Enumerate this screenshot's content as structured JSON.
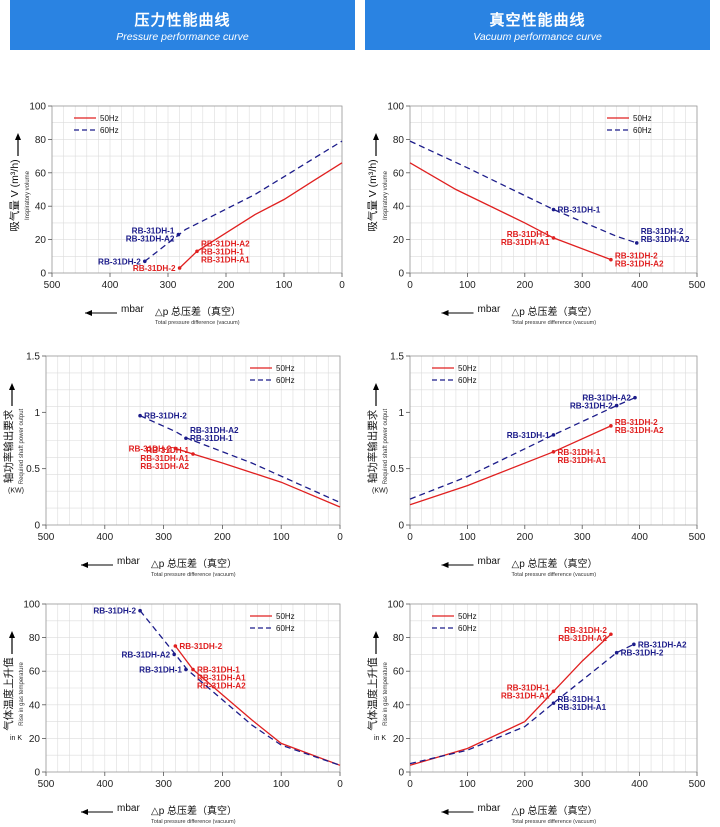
{
  "headers": {
    "left_cn": "压力性能曲线",
    "left_en": "Pressure performance curve",
    "right_cn": "真空性能曲线",
    "right_en": "Vacuum performance curve"
  },
  "colors": {
    "hz50": "#e02020",
    "hz60": "#1c1c8a",
    "header": "#2a83e2"
  },
  "chart_data": [
    {
      "id": "flow-pressure",
      "type": "line",
      "ylabel_cn": "吸气量 V (m³/h)",
      "ylabel_en": "Inspiratory volume",
      "ylabel_unit": "",
      "xunit": "mbar",
      "xlabel_cn": "△p 总压差（真空）",
      "xlabel_en": "Total pressure difference (vacuum)",
      "xlim": [
        500,
        0
      ],
      "xticks": [
        500,
        400,
        300,
        200,
        100,
        0
      ],
      "ylim": [
        0,
        100
      ],
      "yticks": [
        0,
        20,
        40,
        60,
        80,
        100
      ],
      "legend": "top-left",
      "series": [
        {
          "name": "50Hz",
          "dash": false,
          "points": [
            [
              280,
              3
            ],
            [
              250,
              13
            ],
            [
              200,
              24
            ],
            [
              150,
              35
            ],
            [
              100,
              44
            ],
            [
              50,
              55
            ],
            [
              0,
              66
            ]
          ],
          "markers": [
            {
              "x": 280,
              "y": 3,
              "labels": [
                "RB-31DH-2"
              ],
              "side": "left",
              "dy": 0
            },
            {
              "x": 250,
              "y": 13,
              "labels": [
                "RB-31DH-A2",
                "RB-31DH-1",
                "RB-31DH-A1"
              ],
              "side": "right",
              "dy": 0
            }
          ]
        },
        {
          "name": "60Hz",
          "dash": true,
          "points": [
            [
              340,
              7
            ],
            [
              270,
              26
            ],
            [
              150,
              47
            ],
            [
              0,
              79
            ]
          ],
          "markers": [
            {
              "x": 340,
              "y": 7,
              "labels": [
                "RB-31DH-2"
              ],
              "side": "left",
              "dy": 0
            },
            {
              "x": 282,
              "y": 23,
              "labels": [
                "RB-31DH-1",
                "RB-31DH-A2"
              ],
              "side": "left",
              "dy": 0
            }
          ]
        }
      ]
    },
    {
      "id": "flow-vacuum",
      "type": "line",
      "ylabel_cn": "吸气量 V (m³/h)",
      "ylabel_en": "Inspiratory volume",
      "ylabel_unit": "",
      "xunit": "mbar",
      "xlabel_cn": "△p 总压差（真空）",
      "xlabel_en": "Total pressure difference (vacuum)",
      "xlim": [
        0,
        500
      ],
      "xticks": [
        0,
        100,
        200,
        300,
        400,
        500
      ],
      "ylim": [
        0,
        100
      ],
      "yticks": [
        0,
        20,
        40,
        60,
        80,
        100
      ],
      "legend": "top-right",
      "series": [
        {
          "name": "50Hz",
          "dash": false,
          "points": [
            [
              0,
              66
            ],
            [
              80,
              50
            ],
            [
              200,
              30
            ],
            [
              250,
              21
            ],
            [
              350,
              8
            ]
          ],
          "markers": [
            {
              "x": 250,
              "y": 21,
              "labels": [
                "RB-31DH-1",
                "RB-31DH-A1"
              ],
              "side": "left",
              "dy": 0
            },
            {
              "x": 350,
              "y": 8,
              "labels": [
                "RB-31DH-2",
                "RB-31DH-A2"
              ],
              "side": "right",
              "dy": 0
            }
          ]
        },
        {
          "name": "60Hz",
          "dash": true,
          "points": [
            [
              0,
              79
            ],
            [
              100,
              63
            ],
            [
              250,
              38
            ],
            [
              360,
              22
            ],
            [
              395,
              18
            ]
          ],
          "markers": [
            {
              "x": 250,
              "y": 38,
              "labels": [
                "RB-31DH-1"
              ],
              "side": "right",
              "dy": 0
            },
            {
              "x": 395,
              "y": 18,
              "labels": [
                "RB-31DH-2",
                "RB-31DH-A2"
              ],
              "side": "right",
              "dy": -1
            }
          ]
        }
      ]
    },
    {
      "id": "power-pressure",
      "type": "line",
      "ylabel_cn": "轴功率输出要求",
      "ylabel_en": "Required shaft power output",
      "ylabel_unit": "(KW)",
      "xunit": "mbar",
      "xlabel_cn": "△p 总压差（真空）",
      "xlabel_en": "Total pressure difference (vacuum)",
      "xlim": [
        500,
        0
      ],
      "xticks": [
        500,
        400,
        300,
        200,
        100,
        0
      ],
      "ylim": [
        0,
        1.5
      ],
      "yticks": [
        0,
        0.5,
        1,
        1.5
      ],
      "legend": "top-right",
      "series": [
        {
          "name": "50Hz",
          "dash": false,
          "points": [
            [
              280,
              0.68
            ],
            [
              250,
              0.63
            ],
            [
              200,
              0.55
            ],
            [
              100,
              0.38
            ],
            [
              0,
              0.16
            ]
          ],
          "markers": [
            {
              "x": 280,
              "y": 0.68,
              "labels": [
                "RB-31DH-2"
              ],
              "side": "left",
              "dy": 0
            },
            {
              "x": 250,
              "y": 0.63,
              "labels": [
                "RB-31DH-1",
                "RB-31DH-A1",
                "RB-31DH-A2"
              ],
              "side": "left",
              "dy": 0.5
            }
          ]
        },
        {
          "name": "60Hz",
          "dash": true,
          "points": [
            [
              340,
              0.97
            ],
            [
              280,
              0.83
            ],
            [
              260,
              0.77
            ],
            [
              150,
              0.55
            ],
            [
              0,
              0.2
            ]
          ],
          "markers": [
            {
              "x": 340,
              "y": 0.97,
              "labels": [
                "RB-31DH-2"
              ],
              "side": "right",
              "dy": 0
            },
            {
              "x": 262,
              "y": 0.77,
              "labels": [
                "RB-31DH-A2",
                "RB-31DH-1"
              ],
              "side": "right",
              "dy": -0.5
            }
          ]
        }
      ]
    },
    {
      "id": "power-vacuum",
      "type": "line",
      "ylabel_cn": "轴功率输出要求",
      "ylabel_en": "Required shaft power output",
      "ylabel_unit": "(KW)",
      "xunit": "mbar",
      "xlabel_cn": "△p 总压差（真空）",
      "xlabel_en": "Total pressure difference (vacuum)",
      "xlim": [
        0,
        500
      ],
      "xticks": [
        0,
        100,
        200,
        300,
        400,
        500
      ],
      "ylim": [
        0,
        1.5
      ],
      "yticks": [
        0,
        0.5,
        1,
        1.5
      ],
      "legend": "top-left",
      "series": [
        {
          "name": "50Hz",
          "dash": false,
          "points": [
            [
              0,
              0.18
            ],
            [
              100,
              0.35
            ],
            [
              250,
              0.65
            ],
            [
              350,
              0.88
            ]
          ],
          "markers": [
            {
              "x": 250,
              "y": 0.65,
              "labels": [
                "RB-31DH-1",
                "RB-31DH-A1"
              ],
              "side": "right",
              "dy": 0.5
            },
            {
              "x": 350,
              "y": 0.88,
              "labels": [
                "RB-31DH-2",
                "RB-31DH-A2"
              ],
              "side": "right",
              "dy": 0
            }
          ]
        },
        {
          "name": "60Hz",
          "dash": true,
          "points": [
            [
              0,
              0.23
            ],
            [
              100,
              0.43
            ],
            [
              250,
              0.8
            ],
            [
              360,
              1.06
            ],
            [
              392,
              1.13
            ]
          ],
          "markers": [
            {
              "x": 250,
              "y": 0.8,
              "labels": [
                "RB-31DH-1"
              ],
              "side": "left",
              "dy": 0
            },
            {
              "x": 360,
              "y": 1.06,
              "labels": [
                "RB-31DH-2"
              ],
              "side": "left",
              "dy": 0
            },
            {
              "x": 392,
              "y": 1.13,
              "labels": [
                "RB-31DH-A2"
              ],
              "side": "left",
              "dy": 0
            }
          ]
        }
      ]
    },
    {
      "id": "temp-pressure",
      "type": "line",
      "ylabel_cn": "气体温度上升值",
      "ylabel_en": "Rise in gas temperature",
      "ylabel_unit": "in K",
      "xunit": "mbar",
      "xlabel_cn": "△p 总压差（真空）",
      "xlabel_en": "Total pressure difference (vacuum)",
      "xlim": [
        500,
        0
      ],
      "xticks": [
        500,
        400,
        300,
        200,
        100,
        0
      ],
      "ylim": [
        0,
        100
      ],
      "yticks": [
        0,
        20,
        40,
        60,
        80,
        100
      ],
      "legend": "top-right",
      "series": [
        {
          "name": "50Hz",
          "dash": false,
          "points": [
            [
              280,
              75
            ],
            [
              250,
              61
            ],
            [
              200,
              46
            ],
            [
              150,
              31
            ],
            [
              100,
              17
            ],
            [
              0,
              4
            ]
          ],
          "markers": [
            {
              "x": 280,
              "y": 75,
              "labels": [
                "RB-31DH-2"
              ],
              "side": "right",
              "dy": 0
            },
            {
              "x": 250,
              "y": 61,
              "labels": [
                "RB-31DH-1",
                "RB-31DH-A1",
                "RB-31DH-A2"
              ],
              "side": "right",
              "dy": 1
            }
          ]
        },
        {
          "name": "60Hz",
          "dash": true,
          "points": [
            [
              340,
              96
            ],
            [
              280,
              70
            ],
            [
              260,
              61
            ],
            [
              200,
              43
            ],
            [
              150,
              28
            ],
            [
              100,
              16
            ],
            [
              0,
              4
            ]
          ],
          "markers": [
            {
              "x": 340,
              "y": 96,
              "labels": [
                "RB-31DH-2"
              ],
              "side": "left",
              "dy": 0
            },
            {
              "x": 282,
              "y": 70,
              "labels": [
                "RB-31DH-A2"
              ],
              "side": "left",
              "dy": 0
            },
            {
              "x": 262,
              "y": 61,
              "labels": [
                "RB-31DH-1"
              ],
              "side": "left",
              "dy": 0
            }
          ]
        }
      ]
    },
    {
      "id": "temp-vacuum",
      "type": "line",
      "ylabel_cn": "气体温度上升值",
      "ylabel_en": "Rise in gas temperature",
      "ylabel_unit": "in K",
      "xunit": "mbar",
      "xlabel_cn": "△p 总压差（真空）",
      "xlabel_en": "Total pressure difference (vacuum)",
      "xlim": [
        0,
        500
      ],
      "xticks": [
        0,
        100,
        200,
        300,
        400,
        500
      ],
      "ylim": [
        0,
        100
      ],
      "yticks": [
        0,
        20,
        40,
        60,
        80,
        100
      ],
      "legend": "top-left",
      "series": [
        {
          "name": "50Hz",
          "dash": false,
          "points": [
            [
              0,
              4
            ],
            [
              100,
              14
            ],
            [
              200,
              30
            ],
            [
              250,
              48
            ],
            [
              300,
              66
            ],
            [
              350,
              82
            ]
          ],
          "markers": [
            {
              "x": 250,
              "y": 48,
              "labels": [
                "RB-31DH-1",
                "RB-31DH-A1"
              ],
              "side": "left",
              "dy": 0
            },
            {
              "x": 350,
              "y": 82,
              "labels": [
                "RB-31DH-2",
                "RB-31DH-A2"
              ],
              "side": "left",
              "dy": 0
            }
          ]
        },
        {
          "name": "60Hz",
          "dash": true,
          "points": [
            [
              0,
              5
            ],
            [
              100,
              13
            ],
            [
              200,
              27
            ],
            [
              250,
              41
            ],
            [
              360,
              71
            ],
            [
              390,
              76
            ]
          ],
          "markers": [
            {
              "x": 250,
              "y": 41,
              "labels": [
                "RB-31DH-1",
                "RB-31DH-A1"
              ],
              "side": "right",
              "dy": 0
            },
            {
              "x": 360,
              "y": 71,
              "labels": [
                "RB-31DH-2"
              ],
              "side": "right",
              "dy": 0
            },
            {
              "x": 390,
              "y": 76,
              "labels": [
                "RB-31DH-A2"
              ],
              "side": "right",
              "dy": 0
            }
          ]
        }
      ]
    }
  ]
}
